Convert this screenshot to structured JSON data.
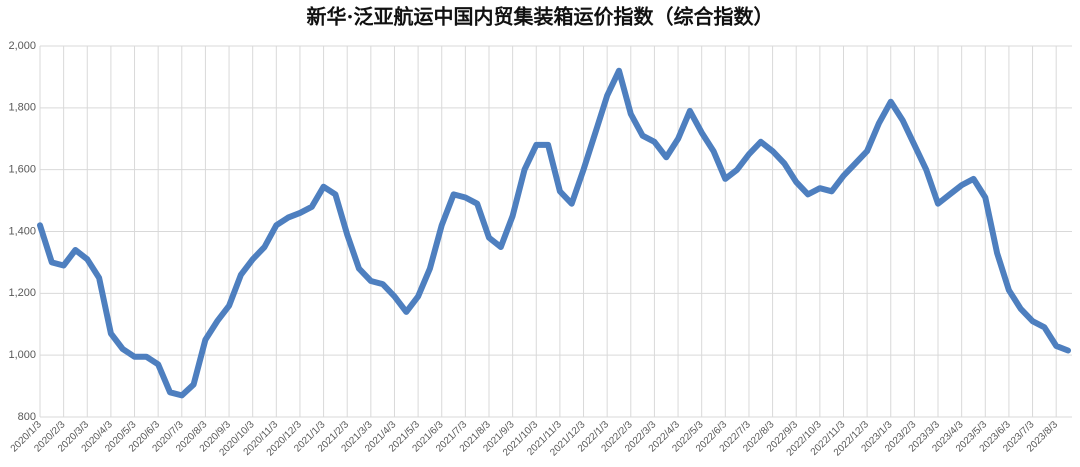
{
  "chart_data": {
    "type": "line",
    "title": "新华·泛亚航运中国内贸集装箱运价指数（综合指数）",
    "categories": [
      "2020/1/3",
      null,
      "2020/2/3",
      null,
      "2020/3/3",
      null,
      "2020/4/3",
      null,
      "2020/5/3",
      null,
      "2020/6/3",
      null,
      "2020/7/3",
      null,
      "2020/8/3",
      null,
      "2020/9/3",
      null,
      "2020/10/3",
      null,
      "2020/11/3",
      null,
      "2020/12/3",
      null,
      "2021/1/3",
      null,
      "2021/2/3",
      null,
      "2021/3/3",
      null,
      "2021/4/3",
      null,
      "2021/5/3",
      null,
      "2021/6/3",
      null,
      "2021/7/3",
      null,
      "2021/8/3",
      null,
      "2021/9/3",
      null,
      "2021/10/3",
      null,
      "2021/11/3",
      null,
      "2021/12/3",
      null,
      "2022/1/3",
      null,
      "2022/2/3",
      null,
      "2022/3/3",
      null,
      "2022/4/3",
      null,
      "2022/5/3",
      null,
      "2022/6/3",
      null,
      "2022/7/3",
      null,
      "2022/8/3",
      null,
      "2022/9/3",
      null,
      "2022/10/3",
      null,
      "2022/11/3",
      null,
      "2022/12/3",
      null,
      "2023/1/3",
      null,
      "2023/2/3",
      null,
      "2023/3/3",
      null,
      "2023/4/3",
      null,
      "2023/5/3",
      null,
      "2023/6/3",
      null,
      "2023/7/3",
      null,
      "2023/8/3",
      null
    ],
    "series": [
      {
        "color": "#4e7fbf",
        "values": [
          1420,
          1300,
          1290,
          1340,
          1310,
          1250,
          1070,
          1020,
          995,
          995,
          970,
          880,
          870,
          905,
          1050,
          1110,
          1160,
          1260,
          1310,
          1350,
          1420,
          1445,
          1460,
          1480,
          1545,
          1520,
          1390,
          1280,
          1240,
          1230,
          1190,
          1140,
          1190,
          1280,
          1420,
          1520,
          1510,
          1490,
          1380,
          1350,
          1450,
          1600,
          1680,
          1680,
          1530,
          1490,
          1600,
          1720,
          1840,
          1920,
          1780,
          1710,
          1690,
          1640,
          1700,
          1790,
          1720,
          1660,
          1570,
          1600,
          1650,
          1690,
          1660,
          1620,
          1560,
          1520,
          1540,
          1530,
          1580,
          1620,
          1660,
          1750,
          1820,
          1760,
          1680,
          1600,
          1490,
          1520,
          1550,
          1570,
          1510,
          1330,
          1210,
          1150,
          1110,
          1090,
          1030,
          1015
        ]
      }
    ],
    "ylim": [
      800,
      2000
    ],
    "yticks": [
      800,
      {
        "value": 1000,
        "label": "1,000"
      },
      {
        "value": 1200,
        "label": "1,200"
      },
      {
        "value": 1400,
        "label": "1,400"
      },
      {
        "value": 1600,
        "label": "1,600"
      },
      {
        "value": 1800,
        "label": "1,800"
      },
      {
        "value": 2000,
        "label": "2,000"
      }
    ],
    "grid": true
  }
}
